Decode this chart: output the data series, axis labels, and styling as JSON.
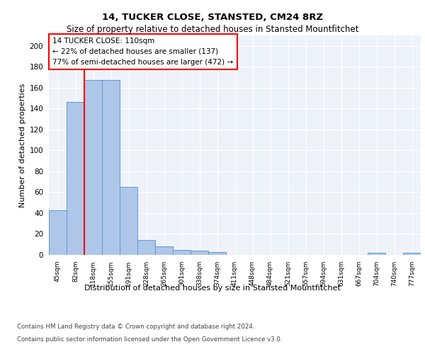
{
  "title1": "14, TUCKER CLOSE, STANSTED, CM24 8RZ",
  "title2": "Size of property relative to detached houses in Stansted Mountfitchet",
  "xlabel": "Distribution of detached houses by size in Stansted Mountfitchet",
  "ylabel": "Number of detached properties",
  "footnote1": "Contains HM Land Registry data © Crown copyright and database right 2024.",
  "footnote2": "Contains public sector information licensed under the Open Government Licence v3.0.",
  "bar_labels": [
    "45sqm",
    "82sqm",
    "118sqm",
    "155sqm",
    "191sqm",
    "228sqm",
    "265sqm",
    "301sqm",
    "338sqm",
    "374sqm",
    "411sqm",
    "448sqm",
    "484sqm",
    "521sqm",
    "557sqm",
    "594sqm",
    "631sqm",
    "667sqm",
    "704sqm",
    "740sqm",
    "777sqm"
  ],
  "bar_values": [
    43,
    146,
    167,
    167,
    65,
    14,
    8,
    5,
    4,
    3,
    0,
    0,
    0,
    0,
    0,
    0,
    0,
    0,
    2,
    0,
    2
  ],
  "bar_color": "#aec6e8",
  "bar_edge_color": "#5b9bd5",
  "vline_color": "red",
  "vline_pos": 1.5,
  "ylim": [
    0,
    210
  ],
  "yticks": [
    0,
    20,
    40,
    60,
    80,
    100,
    120,
    140,
    160,
    180,
    200
  ],
  "annotation_title": "14 TUCKER CLOSE: 110sqm",
  "annotation_line1": "← 22% of detached houses are smaller (137)",
  "annotation_line2": "77% of semi-detached houses are larger (472) →",
  "annotation_box_color": "red",
  "background_color": "#eef2f9"
}
